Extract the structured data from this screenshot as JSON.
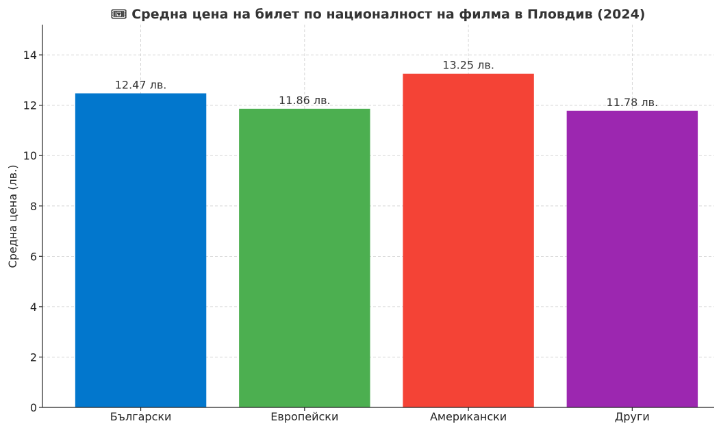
{
  "chart_data": {
    "type": "bar",
    "title": "🎟 Средна цена на билет по националност на филма в Пловдив (2024)",
    "xlabel": "",
    "ylabel": "Средна цена (лв.)",
    "categories": [
      "Български",
      "Европейски",
      "Американски",
      "Други"
    ],
    "values": [
      12.47,
      11.86,
      13.25,
      11.78
    ],
    "value_labels": [
      "12.47 лв.",
      "11.86 лв.",
      "13.25 лв.",
      "11.78 лв."
    ],
    "colors": [
      "#0277cd",
      "#4caf50",
      "#f44336",
      "#9c27b0"
    ],
    "ylim": [
      0,
      15.2
    ],
    "yticks": [
      0,
      2,
      4,
      6,
      8,
      10,
      12,
      14
    ],
    "grid": true,
    "legend": "none"
  }
}
